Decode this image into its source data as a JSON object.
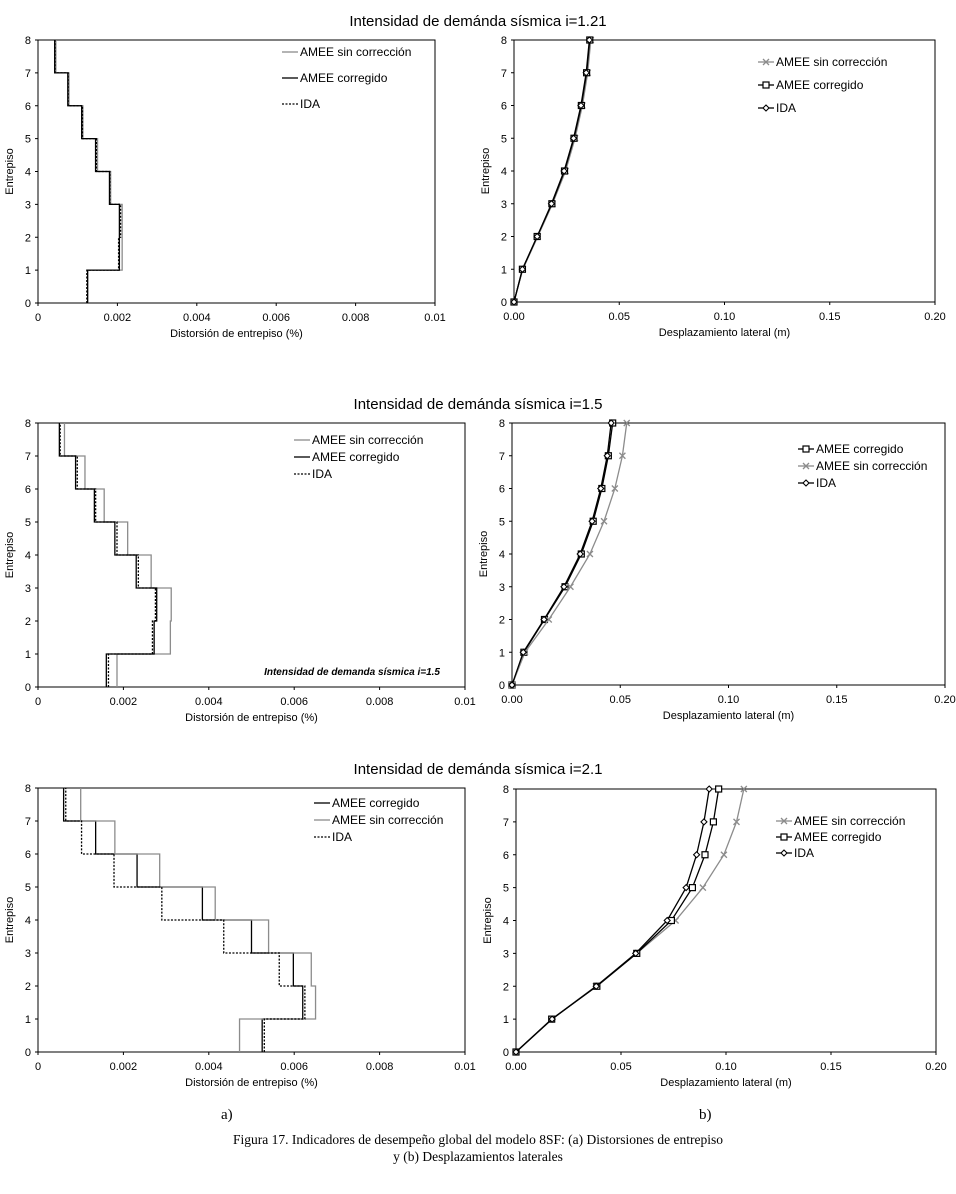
{
  "figure": {
    "caption_line1": "Figura 17. Indicadores de desempeño global del modelo 8SF: (a) Distorsiones de entrepiso",
    "caption_line2": "y (b) Desplazamientos laterales",
    "label_a": "a)",
    "label_b": "b)",
    "row_titles": [
      "Intensidad de demánda sísmica i=1.21",
      "Intensidad de demánda sísmica i=1.5",
      "Intensidad de demánda sísmica i=2.1"
    ]
  },
  "colors": {
    "black": "#000000",
    "gray": "#8c8c8c"
  },
  "chart_data": [
    {
      "id": "drift-121",
      "type": "line",
      "chart_style": "step",
      "title": "",
      "xlabel": "Distorsión de entrepiso (%)",
      "ylabel": "Entrepiso",
      "xlim": [
        0,
        0.01
      ],
      "ylim": [
        0,
        8
      ],
      "xticks": [
        "0",
        "0.002",
        "0.004",
        "0.006",
        "0.008",
        "0.01"
      ],
      "xtick_values": [
        0,
        0.002,
        0.004,
        0.006,
        0.008,
        0.01
      ],
      "yticks": [
        "0",
        "1",
        "2",
        "3",
        "4",
        "5",
        "6",
        "7",
        "8"
      ],
      "legend_position": "top-right",
      "series": [
        {
          "name": "AMEE sin corrección",
          "color": "#8c8c8c",
          "dash": "",
          "values": [
            0.00125,
            0.00212,
            0.00212,
            0.00183,
            0.0015,
            0.00113,
            0.00078,
            0.00045
          ]
        },
        {
          "name": "AMEE corregido",
          "color": "#000000",
          "dash": "",
          "values": [
            0.00125,
            0.00205,
            0.00205,
            0.0018,
            0.00145,
            0.0011,
            0.00075,
            0.00042
          ]
        },
        {
          "name": "IDA",
          "color": "#000000",
          "dash": "2,1.5",
          "values": [
            0.00123,
            0.00203,
            0.00208,
            0.00181,
            0.00147,
            0.00112,
            0.00076,
            0.00043
          ]
        }
      ]
    },
    {
      "id": "disp-121",
      "type": "line",
      "title": "",
      "xlabel": "Desplazamiento lateral (m)",
      "ylabel": "Entrepiso",
      "xlim": [
        0,
        0.2
      ],
      "ylim": [
        0,
        8
      ],
      "xticks": [
        "0.00",
        "0.05",
        "0.10",
        "0.15",
        "0.20"
      ],
      "xtick_values": [
        0,
        0.05,
        0.1,
        0.15,
        0.2
      ],
      "yticks": [
        "0",
        "1",
        "2",
        "3",
        "4",
        "5",
        "6",
        "7",
        "8"
      ],
      "legend_position": "top-right",
      "y": [
        0,
        1,
        2,
        3,
        4,
        5,
        6,
        7,
        8
      ],
      "series": [
        {
          "name": "AMEE sin corrección",
          "color": "#8c8c8c",
          "marker": "x",
          "values": [
            0,
            0.0042,
            0.0113,
            0.0183,
            0.0245,
            0.029,
            0.0325,
            0.035,
            0.0365
          ]
        },
        {
          "name": "AMEE corregido",
          "color": "#000000",
          "marker": "square",
          "values": [
            0,
            0.004,
            0.011,
            0.018,
            0.024,
            0.0285,
            0.032,
            0.0345,
            0.036
          ]
        },
        {
          "name": "IDA",
          "color": "#000000",
          "marker": "diamond",
          "values": [
            0,
            0.004,
            0.011,
            0.0178,
            0.0238,
            0.0283,
            0.0318,
            0.0343,
            0.0358
          ]
        }
      ]
    },
    {
      "id": "drift-15",
      "type": "line",
      "chart_style": "step",
      "title": "",
      "annotation": "Intensidad de demanda sísmica i=1.5",
      "xlabel": "Distorsión de entrepiso (%)",
      "ylabel": "Entrepiso",
      "xlim": [
        0,
        0.01
      ],
      "ylim": [
        0,
        8
      ],
      "xticks": [
        "0",
        "0.002",
        "0.004",
        "0.006",
        "0.008",
        "0.01"
      ],
      "xtick_values": [
        0,
        0.002,
        0.004,
        0.006,
        0.008,
        0.01
      ],
      "yticks": [
        "0",
        "1",
        "2",
        "3",
        "4",
        "5",
        "6",
        "7",
        "8"
      ],
      "legend_position": "top-right",
      "series": [
        {
          "name": "AMEE sin corrección",
          "color": "#8c8c8c",
          "dash": "",
          "values": [
            0.00185,
            0.0031,
            0.00312,
            0.00265,
            0.0021,
            0.00155,
            0.0011,
            0.00062
          ]
        },
        {
          "name": "AMEE corregido",
          "color": "#000000",
          "dash": "",
          "values": [
            0.0016,
            0.00272,
            0.00278,
            0.0023,
            0.0018,
            0.00132,
            0.00088,
            0.0005
          ]
        },
        {
          "name": "IDA",
          "color": "#000000",
          "dash": "2,1.5",
          "values": [
            0.00165,
            0.00268,
            0.00275,
            0.00235,
            0.00185,
            0.00135,
            0.00092,
            0.00052
          ]
        }
      ]
    },
    {
      "id": "disp-15",
      "type": "line",
      "title": "",
      "xlabel": "Desplazamiento lateral (m)",
      "ylabel": "Entrepiso",
      "xlim": [
        0,
        0.2
      ],
      "ylim": [
        0,
        8
      ],
      "xticks": [
        "0.00",
        "0.05",
        "0.10",
        "0.15",
        "0.20"
      ],
      "xtick_values": [
        0,
        0.05,
        0.1,
        0.15,
        0.2
      ],
      "yticks": [
        "0",
        "1",
        "2",
        "3",
        "4",
        "5",
        "6",
        "7",
        "8"
      ],
      "legend_position": "top-right",
      "y": [
        0,
        1,
        2,
        3,
        4,
        5,
        6,
        7,
        8
      ],
      "series": [
        {
          "name": "AMEE corregido",
          "color": "#000000",
          "marker": "square",
          "values": [
            0,
            0.0055,
            0.015,
            0.0245,
            0.032,
            0.0375,
            0.0415,
            0.0445,
            0.0465
          ]
        },
        {
          "name": "AMEE sin corrección",
          "color": "#8c8c8c",
          "marker": "x",
          "values": [
            0,
            0.006,
            0.017,
            0.027,
            0.036,
            0.0425,
            0.0475,
            0.051,
            0.053
          ]
        },
        {
          "name": "IDA",
          "color": "#000000",
          "marker": "diamond",
          "values": [
            0,
            0.0052,
            0.0148,
            0.024,
            0.0315,
            0.037,
            0.041,
            0.044,
            0.0458
          ]
        }
      ]
    },
    {
      "id": "drift-21",
      "type": "line",
      "chart_style": "step",
      "title": "",
      "xlabel": "Distorsión de entrepiso (%)",
      "ylabel": "Entrepiso",
      "xlim": [
        0,
        0.01
      ],
      "ylim": [
        0,
        8
      ],
      "xticks": [
        "0",
        "0.002",
        "0.004",
        "0.006",
        "0.008",
        "0.01"
      ],
      "xtick_values": [
        0,
        0.002,
        0.004,
        0.006,
        0.008,
        0.01
      ],
      "yticks": [
        "0",
        "1",
        "2",
        "3",
        "4",
        "5",
        "6",
        "7",
        "8"
      ],
      "legend_position": "top-right",
      "series": [
        {
          "name": "AMEE corregido",
          "color": "#000000",
          "dash": "",
          "values": [
            0.00525,
            0.0062,
            0.00598,
            0.005,
            0.00385,
            0.00232,
            0.00135,
            0.0006
          ]
        },
        {
          "name": "AMEE sin corrección",
          "color": "#8c8c8c",
          "dash": "",
          "values": [
            0.00472,
            0.0065,
            0.0064,
            0.0054,
            0.00415,
            0.00285,
            0.0018,
            0.001
          ]
        },
        {
          "name": "IDA",
          "color": "#000000",
          "dash": "2,1.5",
          "values": [
            0.0053,
            0.00625,
            0.00565,
            0.00435,
            0.0029,
            0.00178,
            0.00102,
            0.00065
          ]
        }
      ]
    },
    {
      "id": "disp-21",
      "type": "line",
      "title": "",
      "xlabel": "Desplazamiento lateral (m)",
      "ylabel": "Entrepiso",
      "xlim": [
        0,
        0.2
      ],
      "ylim": [
        0,
        8
      ],
      "xticks": [
        "0.00",
        "0.05",
        "0.10",
        "0.15",
        "0.20"
      ],
      "xtick_values": [
        0,
        0.05,
        0.1,
        0.15,
        0.2
      ],
      "yticks": [
        "0",
        "1",
        "2",
        "3",
        "4",
        "5",
        "6",
        "7",
        "8"
      ],
      "legend_position": "top-right",
      "y": [
        0,
        1,
        2,
        3,
        4,
        5,
        6,
        7,
        8
      ],
      "series": [
        {
          "name": "AMEE sin corrección",
          "color": "#8c8c8c",
          "marker": "x",
          "values": [
            0,
            0.017,
            0.038,
            0.0575,
            0.076,
            0.089,
            0.099,
            0.105,
            0.1085
          ]
        },
        {
          "name": "AMEE corregido",
          "color": "#000000",
          "marker": "square",
          "values": [
            0,
            0.017,
            0.0385,
            0.0575,
            0.074,
            0.084,
            0.09,
            0.094,
            0.0965
          ]
        },
        {
          "name": "IDA",
          "color": "#000000",
          "marker": "diamond",
          "values": [
            0,
            0.0172,
            0.0382,
            0.057,
            0.072,
            0.081,
            0.086,
            0.0895,
            0.092
          ]
        }
      ]
    }
  ]
}
